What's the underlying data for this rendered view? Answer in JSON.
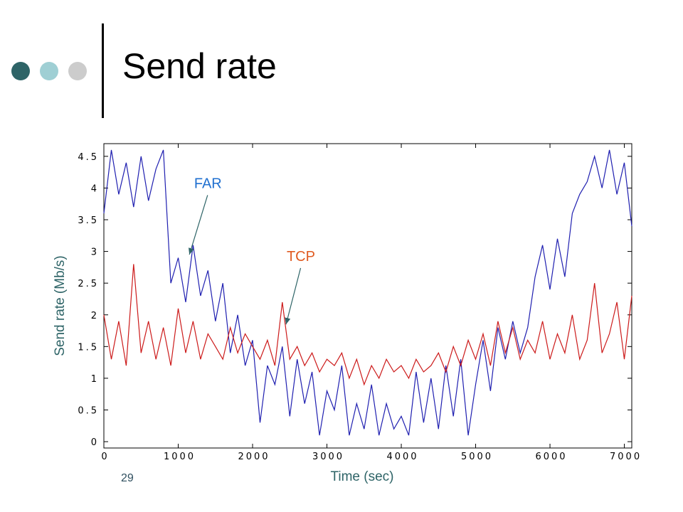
{
  "slide": {
    "title": "Send rate",
    "number": "29",
    "dot_colors": [
      "#2e6467",
      "#9fcfd4",
      "#cccccc"
    ],
    "rule_color": "#000000"
  },
  "chart_data": {
    "type": "line",
    "title": "",
    "xlabel": "Time (sec)",
    "ylabel": "Send rate (Mb/s)",
    "axis_label_color": "#2e6467",
    "xlim": [
      0,
      7100
    ],
    "ylim": [
      -0.1,
      4.7
    ],
    "xticks": [
      0,
      1000,
      2000,
      3000,
      4000,
      5000,
      6000,
      7000
    ],
    "xtick_labels": [
      "0",
      "1000",
      "2000",
      "3000",
      "4000",
      "5000",
      "6000",
      "7000"
    ],
    "yticks": [
      0,
      0.5,
      1,
      1.5,
      2,
      2.5,
      3,
      3.5,
      4,
      4.5
    ],
    "ytick_labels": [
      "0",
      "0.5",
      "1",
      "1.5",
      "2",
      "2.5",
      "3",
      "3.5",
      "4",
      "4.5"
    ],
    "grid": false,
    "series": [
      {
        "name": "FAR",
        "color": "#1f1fb0",
        "label_color": "#2070d0",
        "x": [
          0,
          100,
          200,
          300,
          400,
          500,
          600,
          700,
          800,
          900,
          1000,
          1100,
          1200,
          1300,
          1400,
          1500,
          1600,
          1700,
          1800,
          1900,
          2000,
          2100,
          2200,
          2300,
          2400,
          2500,
          2600,
          2700,
          2800,
          2900,
          3000,
          3100,
          3200,
          3300,
          3400,
          3500,
          3600,
          3700,
          3800,
          3900,
          4000,
          4100,
          4200,
          4300,
          4400,
          4500,
          4600,
          4700,
          4800,
          4900,
          5000,
          5100,
          5200,
          5300,
          5400,
          5500,
          5600,
          5700,
          5800,
          5900,
          6000,
          6100,
          6200,
          6300,
          6400,
          6500,
          6600,
          6700,
          6800,
          6900,
          7000,
          7100
        ],
        "y": [
          3.6,
          4.6,
          3.9,
          4.4,
          3.7,
          4.5,
          3.8,
          4.3,
          4.6,
          2.5,
          2.9,
          2.2,
          3.1,
          2.3,
          2.7,
          1.9,
          2.5,
          1.4,
          2.0,
          1.2,
          1.6,
          0.3,
          1.2,
          0.9,
          1.5,
          0.4,
          1.3,
          0.6,
          1.1,
          0.1,
          0.8,
          0.5,
          1.2,
          0.1,
          0.6,
          0.2,
          0.9,
          0.1,
          0.6,
          0.2,
          0.4,
          0.1,
          1.1,
          0.3,
          1.0,
          0.2,
          1.2,
          0.4,
          1.3,
          0.1,
          0.9,
          1.6,
          0.8,
          1.8,
          1.3,
          1.9,
          1.4,
          1.8,
          2.6,
          3.1,
          2.4,
          3.2,
          2.6,
          3.6,
          3.9,
          4.1,
          4.5,
          4.0,
          4.6,
          3.9,
          4.4,
          3.4
        ],
        "annotation": {
          "text": "FAR",
          "x": 1400,
          "y": 4.0,
          "arrow_to": [
            1150,
            2.95
          ]
        }
      },
      {
        "name": "TCP",
        "color": "#cc1a1a",
        "label_color": "#e05a20",
        "x": [
          0,
          100,
          200,
          300,
          400,
          500,
          600,
          700,
          800,
          900,
          1000,
          1100,
          1200,
          1300,
          1400,
          1500,
          1600,
          1700,
          1800,
          1900,
          2000,
          2100,
          2200,
          2300,
          2400,
          2500,
          2600,
          2700,
          2800,
          2900,
          3000,
          3100,
          3200,
          3300,
          3400,
          3500,
          3600,
          3700,
          3800,
          3900,
          4000,
          4100,
          4200,
          4300,
          4400,
          4500,
          4600,
          4700,
          4800,
          4900,
          5000,
          5100,
          5200,
          5300,
          5400,
          5500,
          5600,
          5700,
          5800,
          5900,
          6000,
          6100,
          6200,
          6300,
          6400,
          6500,
          6600,
          6700,
          6800,
          6900,
          7000,
          7100
        ],
        "y": [
          2.0,
          1.3,
          1.9,
          1.2,
          2.8,
          1.4,
          1.9,
          1.3,
          1.8,
          1.2,
          2.1,
          1.4,
          1.9,
          1.3,
          1.7,
          1.5,
          1.3,
          1.8,
          1.4,
          1.7,
          1.5,
          1.3,
          1.6,
          1.2,
          2.2,
          1.3,
          1.5,
          1.2,
          1.4,
          1.1,
          1.3,
          1.2,
          1.4,
          1.0,
          1.3,
          0.9,
          1.2,
          1.0,
          1.3,
          1.1,
          1.2,
          1.0,
          1.3,
          1.1,
          1.2,
          1.4,
          1.1,
          1.5,
          1.2,
          1.6,
          1.3,
          1.7,
          1.2,
          1.9,
          1.4,
          1.8,
          1.3,
          1.6,
          1.4,
          1.9,
          1.3,
          1.7,
          1.4,
          2.0,
          1.3,
          1.6,
          2.5,
          1.4,
          1.7,
          2.2,
          1.3,
          2.3
        ],
        "annotation": {
          "text": "TCP",
          "x": 2650,
          "y": 2.85,
          "arrow_to": [
            2450,
            1.85
          ]
        }
      }
    ]
  }
}
